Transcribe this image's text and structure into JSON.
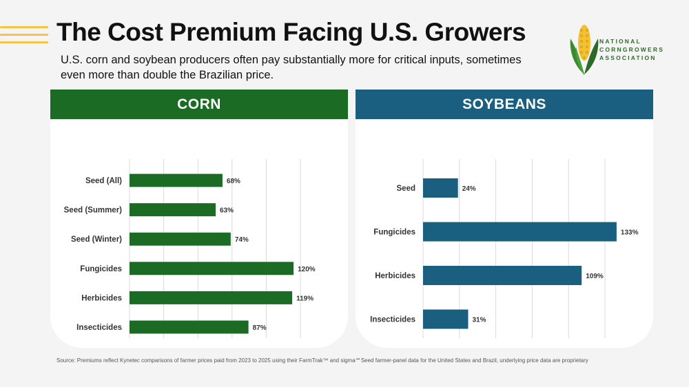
{
  "header": {
    "title": "The Cost Premium Facing U.S. Growers",
    "subtitle": "U.S. corn and soybean producers often pay substantially more for critical inputs, sometimes even more than double the Brazilian price."
  },
  "logo": {
    "icon": "corn-icon",
    "lines": [
      "NATIONAL",
      "CORNGROWERS",
      "ASSOCIATION"
    ]
  },
  "colors": {
    "corn": "#1b6b24",
    "soybeans": "#1a5f7f",
    "accent": "#f5c444"
  },
  "footer": {
    "source": "Source: Premiums reflect Kynetec comparisons of farmer prices paid from 2023 to 2025 using their FarmTrak™ and sigma℠Seed farmer-panel data for the United States and Brazil, underlying price data are proprietary"
  },
  "chart_data": [
    {
      "type": "bar",
      "orientation": "horizontal",
      "title": "CORN",
      "categories": [
        "Seed (All)",
        "Seed (Summer)",
        "Seed (Winter)",
        "Fungicides",
        "Herbicides",
        "Insecticides"
      ],
      "values": [
        68,
        63,
        74,
        120,
        119,
        87
      ],
      "data_labels": [
        "68%",
        "63%",
        "74%",
        "120%",
        "119%",
        "87%"
      ],
      "xlim": [
        0,
        125
      ],
      "xticks": [
        0,
        25,
        50,
        75,
        100,
        125
      ],
      "xtick_labels": [
        "0%",
        "25%",
        "50%",
        "75%",
        "100%",
        "125%"
      ],
      "grid": true,
      "legend": "none",
      "color": "#1b6b24"
    },
    {
      "type": "bar",
      "orientation": "horizontal",
      "title": "SOYBEANS",
      "categories": [
        "Seed",
        "Fungicides",
        "Herbicides",
        "Insecticides"
      ],
      "values": [
        24,
        133,
        109,
        31
      ],
      "data_labels": [
        "24%",
        "133%",
        "109%",
        "31%"
      ],
      "xlim": [
        0,
        125
      ],
      "xticks": [
        0,
        25,
        50,
        75,
        100,
        125
      ],
      "xtick_labels": [
        "0%",
        "25%",
        "50%",
        "75%",
        "100%",
        "125%"
      ],
      "grid": true,
      "legend": "none",
      "color": "#1a5f7f"
    }
  ]
}
